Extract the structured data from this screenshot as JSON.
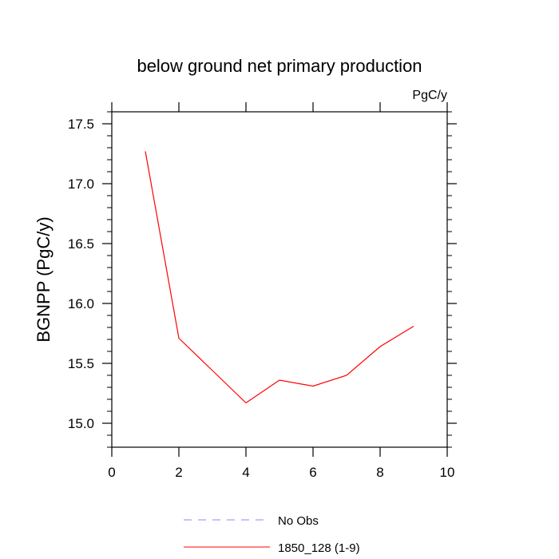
{
  "chart_data": {
    "type": "line",
    "title": "below ground net primary production",
    "units_label": "PgC/y",
    "ylabel": "BGNPP  (PgC/y)",
    "xlabel": "",
    "xlim": [
      0,
      10
    ],
    "ylim": [
      14.8,
      17.6
    ],
    "x_ticks": [
      0,
      2,
      4,
      6,
      8,
      10
    ],
    "x_tick_labels": [
      "0",
      "2",
      "4",
      "6",
      "8",
      "10"
    ],
    "y_ticks": [
      15.0,
      15.5,
      16.0,
      16.5,
      17.0,
      17.5
    ],
    "y_tick_labels": [
      "15.0",
      "15.5",
      "16.0",
      "16.5",
      "17.0",
      "17.5"
    ],
    "grid": false,
    "legend_position": "bottom",
    "series": [
      {
        "name": "1850_128 (1-9)",
        "color": "#ff0000",
        "style": "solid",
        "x": [
          1,
          2,
          3,
          4,
          5,
          6,
          7,
          8,
          9
        ],
        "y": [
          17.27,
          15.71,
          15.44,
          15.17,
          15.36,
          15.31,
          15.4,
          15.64,
          15.81
        ]
      }
    ],
    "legend": [
      {
        "label": "No Obs",
        "color": "#8888ff",
        "style": "dashed"
      },
      {
        "label": "1850_128 (1-9)",
        "color": "#ff0000",
        "style": "solid"
      }
    ]
  }
}
